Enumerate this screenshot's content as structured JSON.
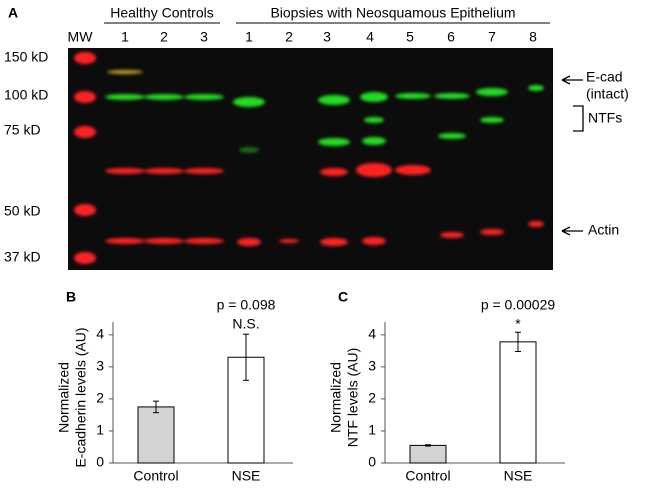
{
  "blot": {
    "panel": "A",
    "group_labels": [
      "Healthy Controls",
      "Biopsies with Neosquamous Epithelium"
    ],
    "lane_labels": [
      "MW",
      "1",
      "2",
      "3",
      "1",
      "2",
      "3",
      "4",
      "5",
      "6",
      "7",
      "8"
    ],
    "mw_labels": [
      "150 kD",
      "100 kD",
      "75 kD",
      "50 kD",
      "37 kD"
    ],
    "band_labels": [
      "E-cad",
      "(intact)",
      "NTFs",
      "Actin"
    ]
  },
  "chart_data": [
    {
      "type": "bar",
      "panel": "B",
      "annotations": [
        "p = 0.098",
        "N.S."
      ],
      "ylabel": [
        "Normalized",
        "E-cadherin levels (AU)"
      ],
      "categories": [
        "Control",
        "NSE"
      ],
      "values": [
        1.75,
        3.3
      ],
      "errors": [
        0.18,
        0.72
      ],
      "colors": [
        "#d3d3d3",
        "#ffffff"
      ],
      "ylim": [
        0,
        4.4
      ],
      "yticks": [
        0,
        1,
        2,
        3,
        4
      ]
    },
    {
      "type": "bar",
      "panel": "C",
      "annotations": [
        "p = 0.00029",
        "*"
      ],
      "ylabel": [
        "Normalized",
        "NTF levels (AU)"
      ],
      "categories": [
        "Control",
        "NSE"
      ],
      "values": [
        0.55,
        3.78
      ],
      "errors": [
        0.02,
        0.3
      ],
      "colors": [
        "#d3d3d3",
        "#ffffff"
      ],
      "ylim": [
        0,
        4.4
      ],
      "yticks": [
        0,
        1,
        2,
        3,
        4
      ]
    }
  ]
}
